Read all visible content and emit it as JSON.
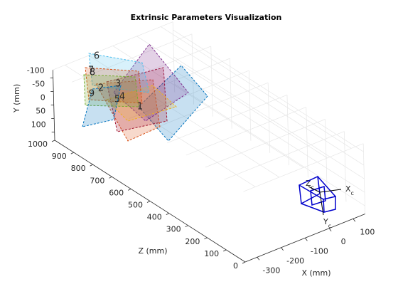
{
  "chart_data": {
    "type": "extrinsics3d",
    "title": "Extrinsic Parameters Visualization",
    "xlabel": "X (mm)",
    "ylabel": "Y (mm)",
    "zlabel": "Z (mm)",
    "xlim": [
      -350,
      150
    ],
    "ylim": [
      -130,
      130
    ],
    "zlim": [
      0,
      1000
    ],
    "xticks": [
      -300,
      -200,
      -100,
      0,
      100
    ],
    "yticks": [
      -100,
      -50,
      0,
      50,
      100
    ],
    "zticks": [
      0,
      100,
      200,
      300,
      400,
      500,
      600,
      700,
      800,
      900,
      1000
    ],
    "grid": true,
    "planes": [
      {
        "name": "1",
        "color": "#0072bd"
      },
      {
        "name": "2",
        "color": "#d95319"
      },
      {
        "name": "3",
        "color": "#a2142f"
      },
      {
        "name": "4",
        "color": "#7e2f8e"
      },
      {
        "name": "5",
        "color": "#edb120"
      },
      {
        "name": "6",
        "color": "#4dbeee"
      },
      {
        "name": "7",
        "color": "#d95319"
      },
      {
        "name": "8",
        "color": "#77ac30"
      },
      {
        "name": "9",
        "color": "#0072bd"
      }
    ],
    "camera_axes": [
      {
        "name": "X",
        "sub": "c"
      },
      {
        "name": "Y",
        "sub": "c"
      },
      {
        "name": "Z",
        "sub": "c"
      }
    ]
  }
}
